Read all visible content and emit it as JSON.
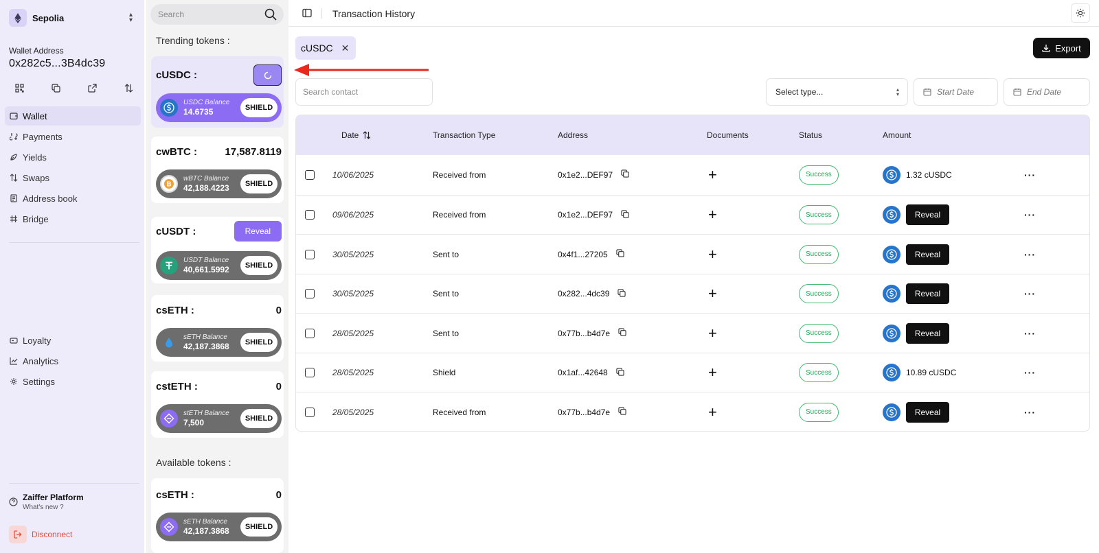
{
  "sidebar": {
    "network": "Sepolia",
    "wallet_label": "Wallet Address",
    "wallet_address": "0x282c5...3B4dc39",
    "nav": [
      {
        "label": "Wallet",
        "icon": "wallet-icon"
      },
      {
        "label": "Payments",
        "icon": "payments-icon"
      },
      {
        "label": "Yields",
        "icon": "yields-icon"
      },
      {
        "label": "Swaps",
        "icon": "swaps-icon"
      },
      {
        "label": "Address book",
        "icon": "address-book-icon"
      },
      {
        "label": "Bridge",
        "icon": "bridge-icon"
      }
    ],
    "nav2": [
      {
        "label": "Loyalty",
        "icon": "loyalty-icon"
      },
      {
        "label": "Analytics",
        "icon": "analytics-icon"
      },
      {
        "label": "Settings",
        "icon": "settings-icon"
      }
    ],
    "platform_title": "Zaiffer Platform",
    "platform_sub": "What's new ?",
    "disconnect": "Disconnect"
  },
  "tokens": {
    "search_placeholder": "Search",
    "trending_title": "Trending tokens :",
    "available_title": "Available tokens :",
    "trending": [
      {
        "name": "cUSDC :",
        "value": "",
        "balance_label": "USDC Balance",
        "balance": "14.6735",
        "shield": "SHIELD"
      },
      {
        "name": "cwBTC :",
        "value": "17,587.8119",
        "balance_label": "wBTC Balance",
        "balance": "42,188.4223",
        "shield": "SHIELD"
      },
      {
        "name": "cUSDT :",
        "value": "",
        "reveal": "Reveal",
        "balance_label": "USDT Balance",
        "balance": "40,661.5992",
        "shield": "SHIELD"
      },
      {
        "name": "csETH :",
        "value": "0",
        "balance_label": "sETH Balance",
        "balance": "42,187.3868",
        "shield": "SHIELD"
      },
      {
        "name": "cstETH :",
        "value": "0",
        "balance_label": "stETH Balance",
        "balance": "7,500",
        "shield": "SHIELD"
      }
    ],
    "available": [
      {
        "name": "csETH :",
        "value": "0",
        "balance_label": "sETH Balance",
        "balance": "42,187.3868",
        "shield": "SHIELD"
      }
    ]
  },
  "main": {
    "title": "Transaction History",
    "chip_label": "cUSDC",
    "export_label": "Export",
    "contact_placeholder": "Search contact",
    "type_placeholder": "Select type...",
    "start_date": "Start Date",
    "end_date": "End Date",
    "columns": {
      "date": "Date",
      "type": "Transaction Type",
      "address": "Address",
      "documents": "Documents",
      "status": "Status",
      "amount": "Amount"
    },
    "rows": [
      {
        "date": "10/06/2025",
        "type": "Received from",
        "address": "0x1e2...DEF97",
        "status": "Success",
        "amount": "1.32 cUSDC",
        "reveal": ""
      },
      {
        "date": "09/06/2025",
        "type": "Received from",
        "address": "0x1e2...DEF97",
        "status": "Success",
        "amount": "",
        "reveal": "Reveal"
      },
      {
        "date": "30/05/2025",
        "type": "Sent to",
        "address": "0x4f1...27205",
        "status": "Success",
        "amount": "",
        "reveal": "Reveal"
      },
      {
        "date": "30/05/2025",
        "type": "Sent to",
        "address": "0x282...4dc39",
        "status": "Success",
        "amount": "",
        "reveal": "Reveal"
      },
      {
        "date": "28/05/2025",
        "type": "Sent to",
        "address": "0x77b...b4d7e",
        "status": "Success",
        "amount": "",
        "reveal": "Reveal"
      },
      {
        "date": "28/05/2025",
        "type": "Shield",
        "address": "0x1af...42648",
        "status": "Success",
        "amount": "10.89 cUSDC",
        "reveal": ""
      },
      {
        "date": "28/05/2025",
        "type": "Received from",
        "address": "0x77b...b4d7e",
        "status": "Success",
        "amount": "",
        "reveal": "Reveal"
      }
    ]
  },
  "colors": {
    "accent": "#8b6cf2",
    "sidebar_bg": "#eeebfb",
    "success": "#27a85a",
    "usdc_blue": "#2775ca",
    "annotation_arrow": "#e8291c"
  }
}
